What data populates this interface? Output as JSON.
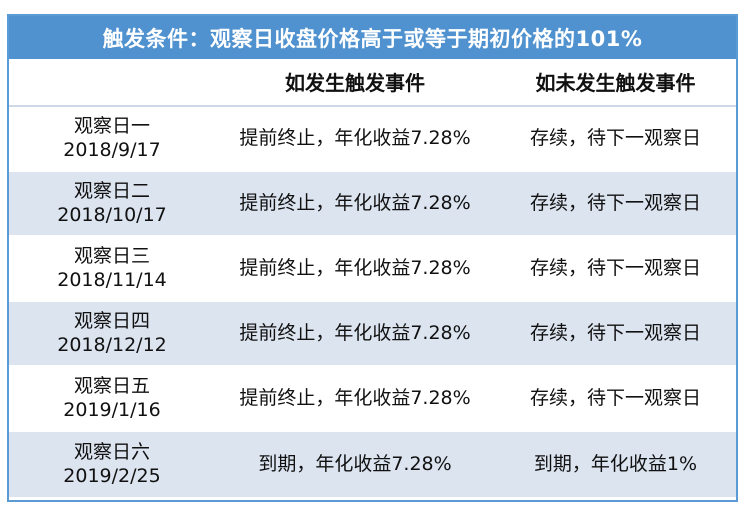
{
  "table": {
    "title": "触发条件：观察日收盘价格高于或等于期初价格的101%",
    "headers": [
      "",
      "如发生触发事件",
      "如未发生触发事件"
    ],
    "rows": [
      {
        "name": "观察日一",
        "date": "2018/9/17",
        "triggered": "提前终止，年化收益7.28%",
        "not_triggered": "存续，待下一观察日"
      },
      {
        "name": "观察日二",
        "date": "2018/10/17",
        "triggered": "提前终止，年化收益7.28%",
        "not_triggered": "存续，待下一观察日"
      },
      {
        "name": "观察日三",
        "date": "2018/11/14",
        "triggered": "提前终止，年化收益7.28%",
        "not_triggered": "存续，待下一观察日"
      },
      {
        "name": "观察日四",
        "date": "2018/12/12",
        "triggered": "提前终止，年化收益7.28%",
        "not_triggered": "存续，待下一观察日"
      },
      {
        "name": "观察日五",
        "date": "2019/1/16",
        "triggered": "提前终止，年化收益7.28%",
        "not_triggered": "存续，待下一观察日"
      },
      {
        "name": "观察日六",
        "date": "2019/2/25",
        "triggered": "到期，年化收益7.28%",
        "not_triggered": "到期，年化收益1%"
      }
    ]
  },
  "colors": {
    "title_background": "#4f92cf",
    "border": "#5b9bd5",
    "alt_row": "#dce4f0"
  }
}
